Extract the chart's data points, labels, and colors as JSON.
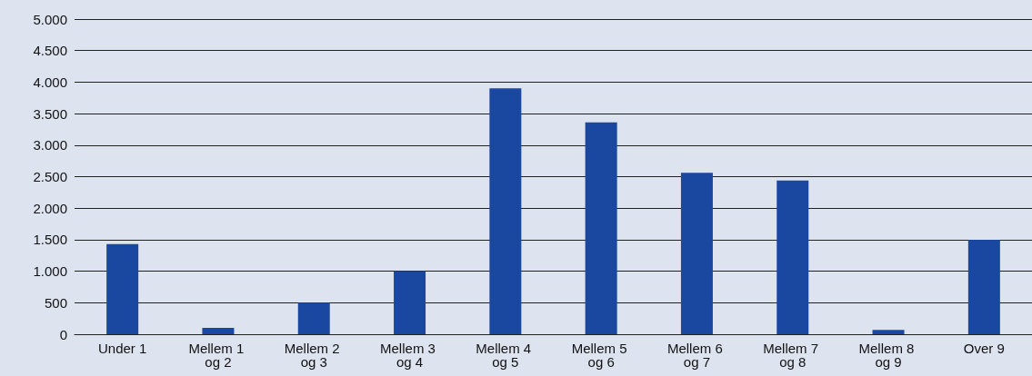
{
  "chart_data": {
    "type": "bar",
    "categories": [
      "Under 1",
      "Mellem 1 og 2",
      "Mellem 2 og 3",
      "Mellem 3 og 4",
      "Mellem 4 og 5",
      "Mellem 5 og 6",
      "Mellem 6 og 7",
      "Mellem 7 og 8",
      "Mellem 8 og 9",
      "Over 9"
    ],
    "values": [
      1430,
      100,
      500,
      1000,
      3900,
      3360,
      2560,
      2440,
      70,
      1500
    ],
    "color": "#1a48a0",
    "ylim": [
      0,
      5000
    ],
    "yticks": [
      {
        "value": 0,
        "label": "0"
      },
      {
        "value": 500,
        "label": "500"
      },
      {
        "value": 1000,
        "label": "1.000"
      },
      {
        "value": 1500,
        "label": "1.500"
      },
      {
        "value": 2000,
        "label": "2.000"
      },
      {
        "value": 2500,
        "label": "2.500"
      },
      {
        "value": 3000,
        "label": "3.000"
      },
      {
        "value": 3500,
        "label": "3.500"
      },
      {
        "value": 4000,
        "label": "4.000"
      },
      {
        "value": 4500,
        "label": "4.500"
      },
      {
        "value": 5000,
        "label": "5.000"
      }
    ],
    "grid": "y"
  }
}
